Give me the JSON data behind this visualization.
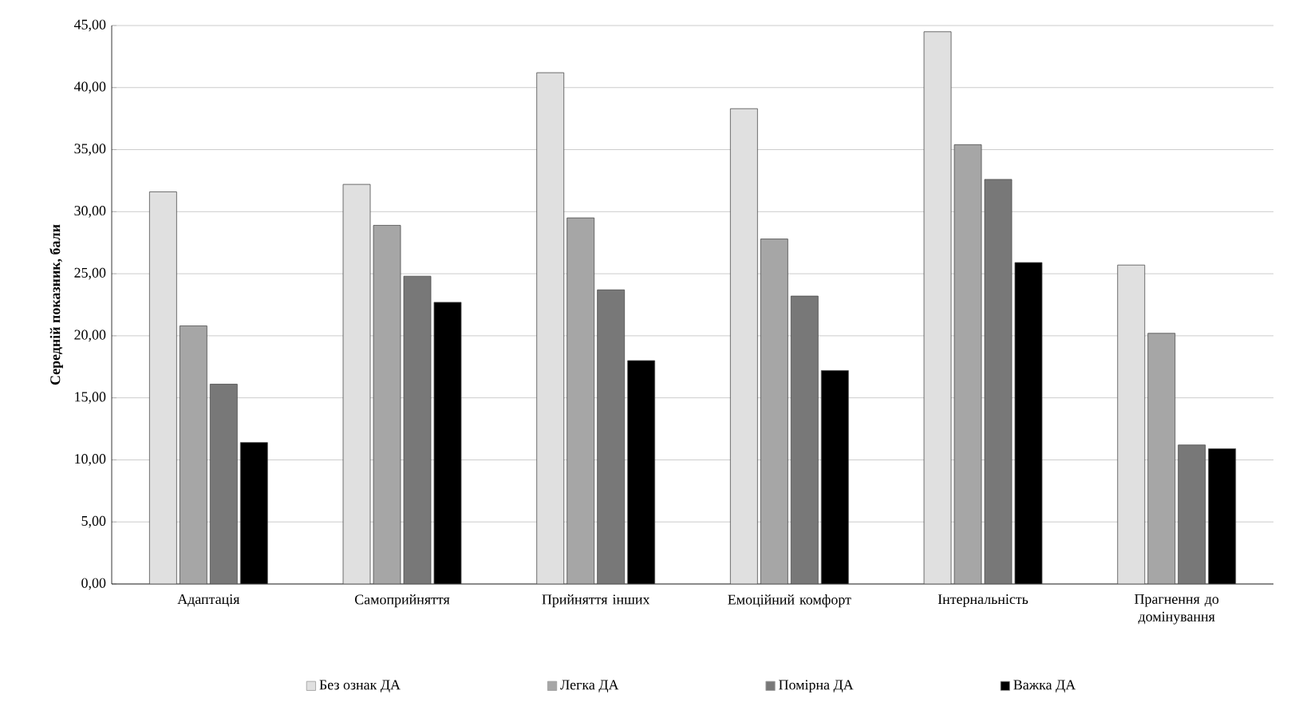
{
  "chart_data": {
    "type": "bar",
    "ylabel": "Середній показник, бали",
    "categories": [
      "Адаптація",
      "Самоприйняття",
      "Прийняття інших",
      "Емоційний комфорт",
      "Інтернальність",
      "Прагнення до домінування"
    ],
    "series": [
      {
        "name": "Без ознак ДА",
        "color": "#e0e0e0",
        "values": [
          31.6,
          32.2,
          41.2,
          38.3,
          44.5,
          25.7
        ]
      },
      {
        "name": "Легка ДА",
        "color": "#a6a6a6",
        "values": [
          20.8,
          28.9,
          29.5,
          27.8,
          35.4,
          20.2
        ]
      },
      {
        "name": "Помірна ДА",
        "color": "#787878",
        "values": [
          16.1,
          24.8,
          23.7,
          23.2,
          32.6,
          11.2
        ]
      },
      {
        "name": "Важка ДА",
        "color": "#000000",
        "values": [
          11.4,
          22.7,
          18.0,
          17.2,
          25.9,
          10.9
        ]
      }
    ],
    "ylim": [
      0,
      45
    ],
    "yticks": [
      {
        "value": 0,
        "label": "0,00"
      },
      {
        "value": 5,
        "label": "5,00"
      },
      {
        "value": 10,
        "label": "10,00"
      },
      {
        "value": 15,
        "label": "15,00"
      },
      {
        "value": 20,
        "label": "20,00"
      },
      {
        "value": 25,
        "label": "25,00"
      },
      {
        "value": 30,
        "label": "30,00"
      },
      {
        "value": 35,
        "label": "35,00"
      },
      {
        "value": 40,
        "label": "40,00"
      },
      {
        "value": 45,
        "label": "45,00"
      }
    ],
    "grid": "y",
    "legend": "bottom"
  }
}
